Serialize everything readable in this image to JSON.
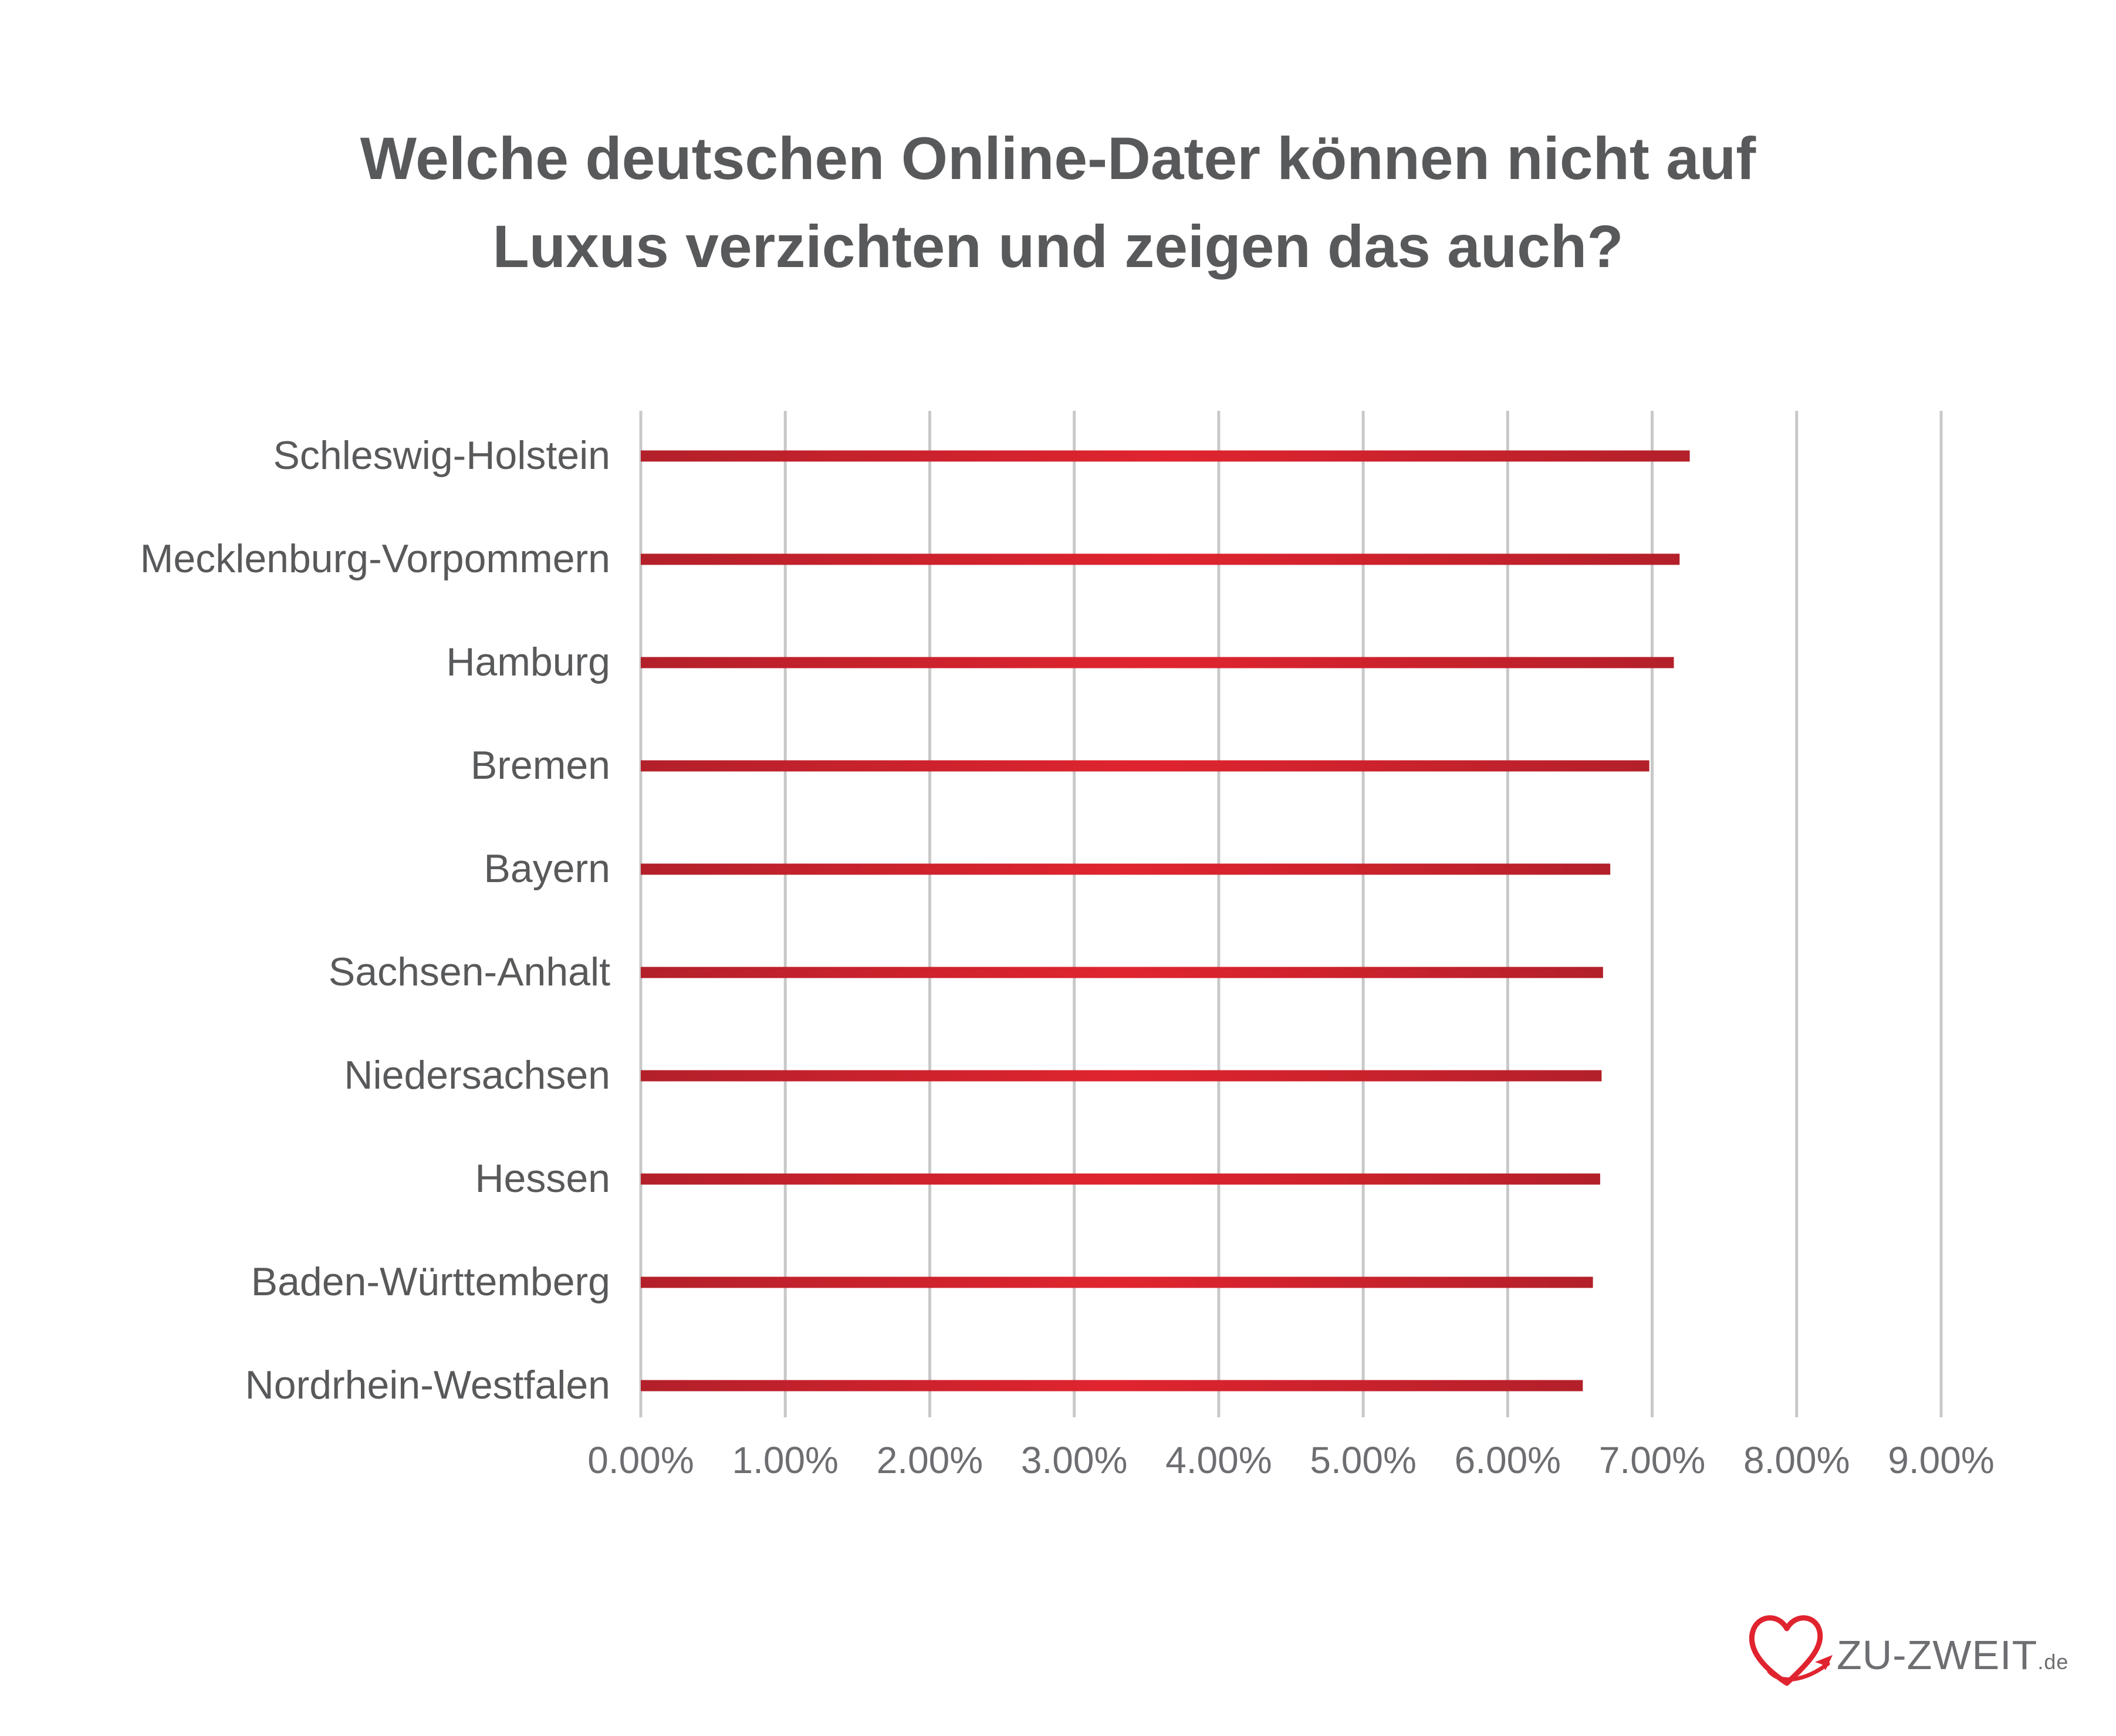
{
  "chart_data": {
    "type": "bar",
    "orientation": "horizontal",
    "title": "Welche deutschen Online-Dater können nicht auf Luxus verzichten und zeigen das auch?",
    "title_lines": [
      "Welche deutschen Online-Dater können nicht auf",
      "Luxus verzichten und zeigen das auch?"
    ],
    "categories": [
      "Schleswig-Holstein",
      "Mecklenburg-Vorpommern",
      "Hamburg",
      "Bremen",
      "Bayern",
      "Sachsen-Anhalt",
      "Niedersachsen",
      "Hessen",
      "Baden-Württemberg",
      "Nordrhein-Westfalen"
    ],
    "values": [
      7.26,
      7.19,
      7.15,
      6.98,
      6.71,
      6.66,
      6.65,
      6.64,
      6.59,
      6.52
    ],
    "value_unit": "%",
    "xlim": [
      0,
      9
    ],
    "x_ticks": [
      "0.00%",
      "1.00%",
      "2.00%",
      "3.00%",
      "4.00%",
      "5.00%",
      "6.00%",
      "7.00%",
      "8.00%",
      "9.00%"
    ],
    "grid": true,
    "legend": "none",
    "bar_color": "#e0242f",
    "bar_color_dark": "#b3202a"
  },
  "branding": {
    "logo_text": "ZU-ZWEIT",
    "logo_suffix": ".de",
    "logo_icon": "heart-paper-plane-icon",
    "logo_color": "#e0242f"
  }
}
